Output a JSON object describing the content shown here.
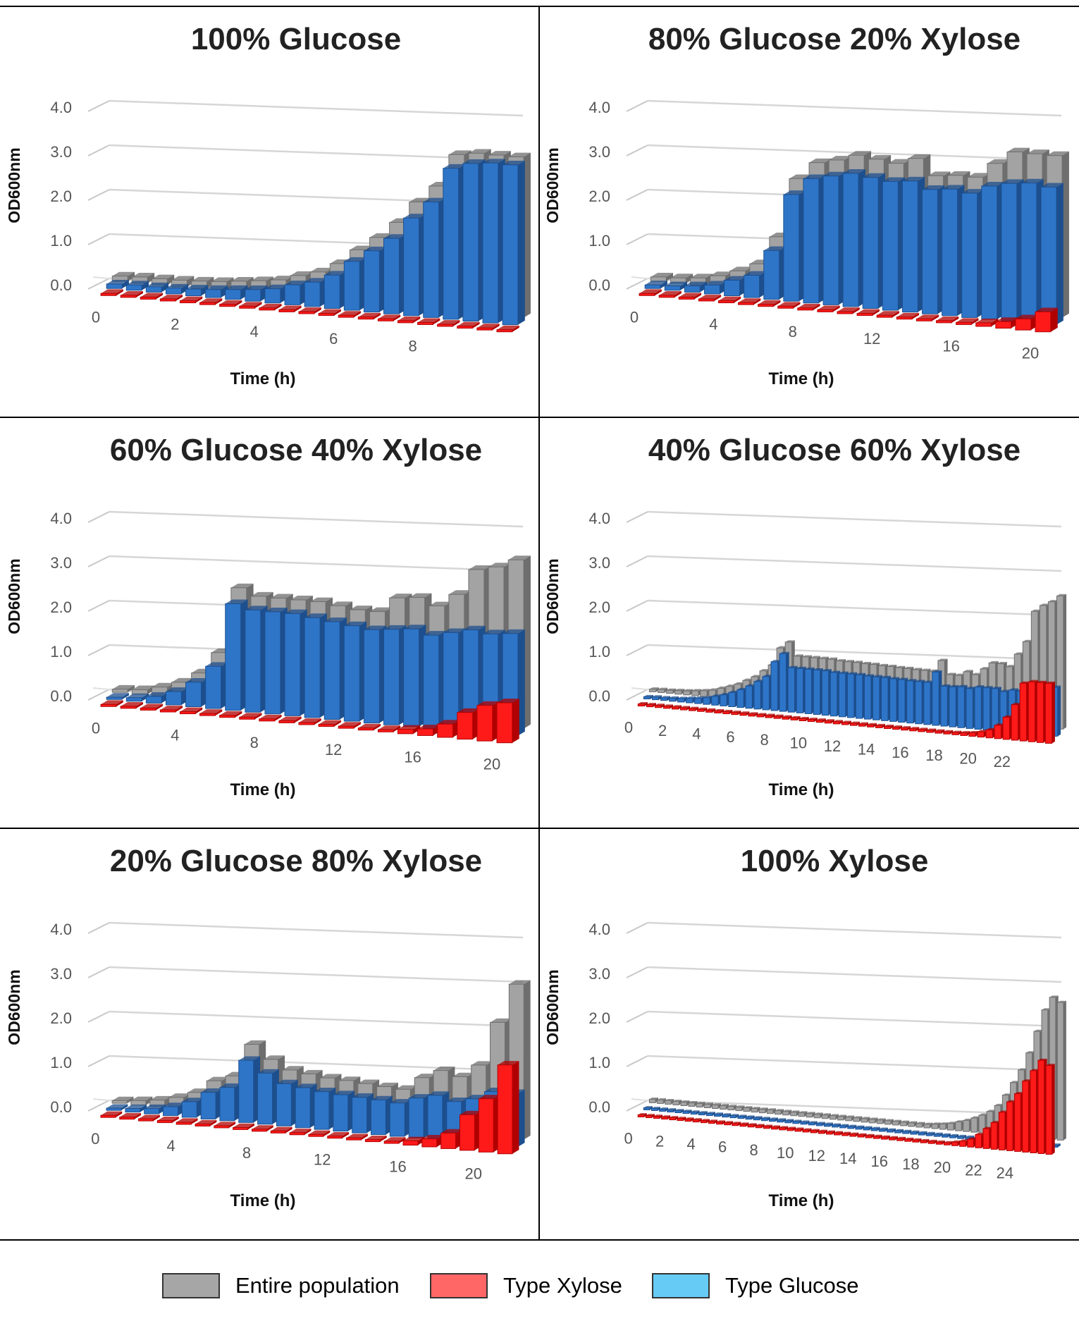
{
  "colors": {
    "entire": "#a3a3a3",
    "entire_side": "#6e6e6e",
    "xylose": "#ff1a1a",
    "xylose_side": "#b00000",
    "glucose": "#2e75c8",
    "glucose_side": "#1d4f8e",
    "legend_entire": "#a6a6a6",
    "legend_xylose": "#ff6666",
    "legend_glucose": "#66ccf5"
  },
  "legend": [
    {
      "key": "entire",
      "label": "Entire population"
    },
    {
      "key": "xylose",
      "label": "Type Xylose"
    },
    {
      "key": "glucose",
      "label": "Type Glucose"
    }
  ],
  "chart_data": [
    {
      "type": "bar",
      "title": "100% Glucose",
      "xlabel": "Time (h)",
      "ylabel": "OD600nm",
      "yticks": [
        "0.0",
        "1.0",
        "2.0",
        "3.0",
        "4.0"
      ],
      "ylim": [
        0,
        4
      ],
      "x_tick_labels": [
        "0",
        "2",
        "4",
        "6",
        "8"
      ],
      "x_tick_every": 4,
      "series": [
        {
          "name": "Type Xylose",
          "values": [
            0.02,
            0.02,
            0.02,
            0.02,
            0.02,
            0.02,
            0.02,
            0.02,
            0.02,
            0.02,
            0.02,
            0.02,
            0.02,
            0.02,
            0.02,
            0.02,
            0.02,
            0.02,
            0.02,
            0.02,
            0.02
          ]
        },
        {
          "name": "Type Glucose",
          "values": [
            0.1,
            0.12,
            0.12,
            0.13,
            0.15,
            0.18,
            0.22,
            0.26,
            0.32,
            0.45,
            0.55,
            0.75,
            1.1,
            1.38,
            1.7,
            2.2,
            2.6,
            3.4,
            3.55,
            3.6,
            3.6
          ]
        },
        {
          "name": "Entire population",
          "values": [
            0.12,
            0.14,
            0.14,
            0.15,
            0.17,
            0.2,
            0.25,
            0.3,
            0.36,
            0.5,
            0.62,
            0.85,
            1.2,
            1.52,
            1.9,
            2.4,
            2.8,
            3.55,
            3.62,
            3.62,
            3.62
          ]
        }
      ]
    },
    {
      "type": "bar",
      "title": "80% Glucose 20% Xylose",
      "xlabel": "Time (h)",
      "ylabel": "OD600nm",
      "yticks": [
        "0.0",
        "1.0",
        "2.0",
        "3.0",
        "4.0"
      ],
      "ylim": [
        0,
        4
      ],
      "x_tick_labels": [
        "0",
        "4",
        "8",
        "12",
        "16",
        "20"
      ],
      "x_tick_every": 4,
      "series": [
        {
          "name": "Type Xylose",
          "values": [
            0.02,
            0.02,
            0.02,
            0.02,
            0.02,
            0.02,
            0.02,
            0.02,
            0.02,
            0.02,
            0.02,
            0.02,
            0.02,
            0.02,
            0.03,
            0.04,
            0.05,
            0.08,
            0.15,
            0.25,
            0.45
          ]
        },
        {
          "name": "Type Glucose",
          "values": [
            0.08,
            0.1,
            0.14,
            0.2,
            0.35,
            0.5,
            1.1,
            2.4,
            2.8,
            2.9,
            3.0,
            2.95,
            2.9,
            2.95,
            2.8,
            2.85,
            2.8,
            3.0,
            3.1,
            3.15,
            3.1
          ]
        },
        {
          "name": "Entire population",
          "values": [
            0.1,
            0.12,
            0.16,
            0.25,
            0.4,
            0.6,
            1.25,
            2.6,
            3.0,
            3.1,
            3.25,
            3.2,
            3.15,
            3.3,
            2.95,
            3.0,
            3.0,
            3.35,
            3.65,
            3.65,
            3.65
          ]
        }
      ]
    },
    {
      "type": "bar",
      "title": "60% Glucose 40% Xylose",
      "xlabel": "Time (h)",
      "ylabel": "OD600nm",
      "yticks": [
        "0.0",
        "1.0",
        "2.0",
        "3.0",
        "4.0"
      ],
      "ylim": [
        0,
        4
      ],
      "x_tick_labels": [
        "0",
        "4",
        "8",
        "12",
        "16",
        "20"
      ],
      "x_tick_every": 4,
      "series": [
        {
          "name": "Type Xylose",
          "values": [
            0.02,
            0.02,
            0.02,
            0.02,
            0.02,
            0.02,
            0.02,
            0.02,
            0.02,
            0.02,
            0.02,
            0.02,
            0.02,
            0.02,
            0.05,
            0.1,
            0.15,
            0.3,
            0.6,
            0.8,
            0.9
          ]
        },
        {
          "name": "Type Glucose",
          "values": [
            0.05,
            0.08,
            0.15,
            0.3,
            0.55,
            0.95,
            2.4,
            2.3,
            2.3,
            2.3,
            2.25,
            2.2,
            2.15,
            2.1,
            2.15,
            2.2,
            2.1,
            2.2,
            2.3,
            2.25,
            2.3
          ]
        },
        {
          "name": "Entire population",
          "values": [
            0.07,
            0.1,
            0.2,
            0.35,
            0.6,
            1.1,
            2.6,
            2.45,
            2.45,
            2.45,
            2.45,
            2.4,
            2.35,
            2.35,
            2.7,
            2.75,
            2.6,
            2.9,
            3.5,
            3.6,
            3.8
          ]
        }
      ]
    },
    {
      "type": "bar",
      "title": "40% Glucose 60% Xylose",
      "xlabel": "Time (h)",
      "ylabel": "OD600nm",
      "yticks": [
        "0.0",
        "1.0",
        "2.0",
        "3.0",
        "4.0"
      ],
      "ylim": [
        0,
        4
      ],
      "x_tick_labels": [
        "0",
        "2",
        "4",
        "6",
        "8",
        "10",
        "12",
        "14",
        "16",
        "18",
        "20",
        "22"
      ],
      "x_tick_every": 4,
      "series": [
        {
          "name": "Type Xylose",
          "values": [
            0.02,
            0.02,
            0.02,
            0.02,
            0.02,
            0.02,
            0.02,
            0.02,
            0.02,
            0.02,
            0.02,
            0.02,
            0.02,
            0.02,
            0.02,
            0.02,
            0.02,
            0.02,
            0.02,
            0.02,
            0.02,
            0.02,
            0.02,
            0.02,
            0.02,
            0.02,
            0.02,
            0.02,
            0.02,
            0.02,
            0.02,
            0.02,
            0.02,
            0.02,
            0.02,
            0.02,
            0.03,
            0.05,
            0.06,
            0.08,
            0.12,
            0.18,
            0.3,
            0.5,
            0.8,
            1.3,
            1.35,
            1.35,
            1.35
          ]
        },
        {
          "name": "Type Glucose",
          "values": [
            0.05,
            0.06,
            0.06,
            0.07,
            0.08,
            0.1,
            0.12,
            0.15,
            0.2,
            0.25,
            0.32,
            0.4,
            0.5,
            0.62,
            0.75,
            1.1,
            1.3,
            1.0,
            1.0,
            1.0,
            1.0,
            1.0,
            0.98,
            0.98,
            0.98,
            0.98,
            0.97,
            0.97,
            0.97,
            0.96,
            0.96,
            0.95,
            0.95,
            0.95,
            1.2,
            0.9,
            0.9,
            0.92,
            0.9,
            0.95,
            0.95,
            0.95,
            0.9,
            0.95,
            0.95,
            1.0,
            1.0,
            1.05,
            1.1
          ]
        },
        {
          "name": "Entire population",
          "values": [
            0.06,
            0.07,
            0.07,
            0.08,
            0.09,
            0.11,
            0.13,
            0.16,
            0.22,
            0.28,
            0.35,
            0.45,
            0.55,
            0.7,
            0.85,
            1.25,
            1.4,
            1.1,
            1.1,
            1.1,
            1.1,
            1.1,
            1.08,
            1.08,
            1.08,
            1.07,
            1.07,
            1.06,
            1.06,
            1.05,
            1.05,
            1.04,
            1.04,
            1.04,
            1.3,
            1.0,
            1.0,
            1.1,
            1.05,
            1.2,
            1.35,
            1.35,
            1.3,
            1.6,
            1.9,
            2.6,
            2.75,
            2.85,
            3.0
          ]
        }
      ]
    },
    {
      "type": "bar",
      "title": "20% Glucose 80% Xylose",
      "xlabel": "Time (h)",
      "ylabel": "OD600nm",
      "yticks": [
        "0.0",
        "1.0",
        "2.0",
        "3.0",
        "4.0"
      ],
      "ylim": [
        0,
        4
      ],
      "x_tick_labels": [
        "0",
        "4",
        "8",
        "12",
        "16",
        "20"
      ],
      "x_tick_every": 4,
      "series": [
        {
          "name": "Type Xylose",
          "values": [
            0.02,
            0.02,
            0.02,
            0.02,
            0.02,
            0.02,
            0.02,
            0.02,
            0.02,
            0.02,
            0.02,
            0.02,
            0.02,
            0.02,
            0.03,
            0.05,
            0.1,
            0.18,
            0.35,
            0.8,
            1.2,
            2.0
          ]
        },
        {
          "name": "Type Glucose",
          "values": [
            0.05,
            0.08,
            0.12,
            0.2,
            0.35,
            0.6,
            0.75,
            1.4,
            1.15,
            0.95,
            0.9,
            0.85,
            0.82,
            0.8,
            0.78,
            0.75,
            0.9,
            1.0,
            0.9,
            1.0,
            1.2,
            1.2
          ]
        },
        {
          "name": "Entire population",
          "values": [
            0.06,
            0.1,
            0.15,
            0.25,
            0.4,
            0.7,
            0.85,
            1.6,
            1.3,
            1.1,
            1.05,
            1.0,
            0.98,
            0.95,
            0.92,
            0.9,
            1.2,
            1.4,
            1.3,
            1.6,
            2.6,
            3.5
          ]
        }
      ]
    },
    {
      "type": "bar",
      "title": "100% Xylose",
      "xlabel": "Time (h)",
      "ylabel": "OD600nm",
      "yticks": [
        "0.0",
        "1.0",
        "2.0",
        "3.0",
        "4.0"
      ],
      "ylim": [
        0,
        4
      ],
      "x_tick_labels": [
        "0",
        "2",
        "4",
        "6",
        "8",
        "10",
        "12",
        "14",
        "16",
        "18",
        "20",
        "22",
        "24"
      ],
      "x_tick_every": 4,
      "series": [
        {
          "name": "Type Xylose",
          "values": [
            0.02,
            0.02,
            0.02,
            0.02,
            0.02,
            0.02,
            0.02,
            0.02,
            0.02,
            0.02,
            0.02,
            0.02,
            0.02,
            0.02,
            0.02,
            0.02,
            0.02,
            0.02,
            0.02,
            0.02,
            0.02,
            0.02,
            0.02,
            0.02,
            0.02,
            0.02,
            0.02,
            0.02,
            0.02,
            0.02,
            0.02,
            0.02,
            0.02,
            0.02,
            0.02,
            0.02,
            0.02,
            0.02,
            0.03,
            0.05,
            0.08,
            0.12,
            0.18,
            0.3,
            0.45,
            0.6,
            0.85,
            1.1,
            1.3,
            1.6,
            1.85,
            2.1,
            2.0
          ]
        },
        {
          "name": "Type Glucose",
          "values": [
            0.02,
            0.02,
            0.02,
            0.02,
            0.02,
            0.02,
            0.02,
            0.02,
            0.02,
            0.02,
            0.02,
            0.02,
            0.02,
            0.02,
            0.02,
            0.02,
            0.02,
            0.02,
            0.02,
            0.02,
            0.02,
            0.02,
            0.02,
            0.02,
            0.02,
            0.02,
            0.02,
            0.02,
            0.02,
            0.02,
            0.02,
            0.02,
            0.02,
            0.02,
            0.02,
            0.02,
            0.02,
            0.02,
            0.02,
            0.02,
            0.02,
            0.02,
            0.02,
            0.02,
            0.02,
            0.02,
            0.02,
            0.02,
            0.02,
            0.02,
            0.02,
            0.02,
            0.02
          ]
        },
        {
          "name": "Entire population",
          "values": [
            0.08,
            0.08,
            0.08,
            0.08,
            0.08,
            0.08,
            0.08,
            0.08,
            0.08,
            0.08,
            0.08,
            0.08,
            0.08,
            0.08,
            0.08,
            0.08,
            0.08,
            0.08,
            0.08,
            0.08,
            0.08,
            0.08,
            0.08,
            0.08,
            0.08,
            0.08,
            0.08,
            0.08,
            0.08,
            0.08,
            0.08,
            0.08,
            0.08,
            0.08,
            0.08,
            0.08,
            0.1,
            0.12,
            0.15,
            0.2,
            0.25,
            0.32,
            0.4,
            0.5,
            0.65,
            0.9,
            1.2,
            1.5,
            1.9,
            2.4,
            2.9,
            3.2,
            3.1
          ]
        }
      ]
    }
  ]
}
